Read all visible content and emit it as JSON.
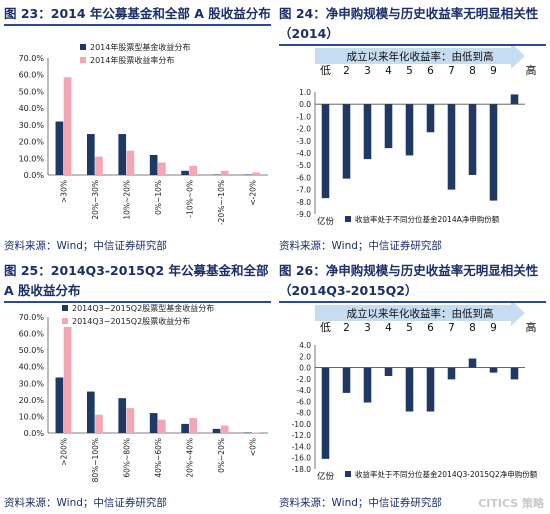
{
  "colors": {
    "navy": "#1f3864",
    "pink": "#f4a6b4",
    "title": "#1b2f6b",
    "arrow": "#5b9bd5"
  },
  "watermark": "CITICS 策略",
  "chart_data": [
    {
      "id": "chart23",
      "type": "bar",
      "title": "图 23：2014 年公募基金和全部 A 股收益分布",
      "source": "资料来源：Wind；中信证券研究部",
      "categories": [
        ">30%",
        "20%~30%",
        "10%~20%",
        "0%~10%",
        "-10%~0%",
        "-20%~-10%",
        "<-20%"
      ],
      "series": [
        {
          "name": "2014年股票型基金收益分布",
          "values": [
            32,
            24.5,
            24.5,
            12,
            2.5,
            0.3,
            0.3
          ]
        },
        {
          "name": "2014年股票收益率分布",
          "values": [
            58.5,
            11,
            14.5,
            7.5,
            5.5,
            2.5,
            1.5
          ]
        }
      ],
      "yticks": [
        "70.0%",
        "60.0%",
        "50.0%",
        "40.0%",
        "30.0%",
        "20.0%",
        "10.0%",
        "0.0%"
      ],
      "ylim": [
        0,
        70
      ]
    },
    {
      "id": "chart24",
      "type": "bar",
      "title": "图 24：净申购规模与历史收益率无明显相关性（2014）",
      "source": "资料来源：Wind；中信证券研究部",
      "arrow_label": "成立以来年化收益率：由低到高",
      "axis_low": "低",
      "axis_high": "高",
      "corner_label": "亿份",
      "categories": [
        "1",
        "2",
        "3",
        "4",
        "5",
        "6",
        "7",
        "8",
        "9",
        "10"
      ],
      "category_labels": [
        "",
        "2",
        "3",
        "4",
        "5",
        "6",
        "7",
        "8",
        "9",
        ""
      ],
      "series": [
        {
          "name": "收益率处于不同分位基金2014A净申购份额",
          "values": [
            -7.7,
            -6.1,
            -4.5,
            -3.6,
            -4.2,
            -2.3,
            -7.0,
            -5.8,
            -7.9,
            0.8
          ]
        }
      ],
      "yticks": [
        "1.0",
        "0.0",
        "-1.0",
        "-2.0",
        "-3.0",
        "-4.0",
        "-5.0",
        "-6.0",
        "-7.0",
        "-8.0",
        "-9.0"
      ],
      "ylim": [
        -9,
        1
      ]
    },
    {
      "id": "chart25",
      "type": "bar",
      "title": "图 25：2014Q3-2015Q2 年公募基金和全部 A 股收益分布",
      "source": "资料来源：Wind；中信证券研究部",
      "categories": [
        ">200%",
        "80%~100%",
        "60%~80%",
        "40%~60%",
        "20%~40%",
        "0%~20%",
        "<0%"
      ],
      "series": [
        {
          "name": "2014Q3~2015Q2股票型基金收益分布",
          "values": [
            33.5,
            25,
            21,
            12,
            5.5,
            2.5,
            0.3
          ]
        },
        {
          "name": "2014Q3~2015Q2股票收益分布",
          "values": [
            64,
            11,
            15,
            8,
            9,
            4.5,
            0.3
          ]
        }
      ],
      "yticks": [
        "70.0%",
        "60.0%",
        "50.0%",
        "40.0%",
        "30.0%",
        "20.0%",
        "10.0%",
        "0.0%"
      ],
      "ylim": [
        0,
        70
      ]
    },
    {
      "id": "chart26",
      "type": "bar",
      "title": "图 26：净申购规模与历史收益率无明显相关性（2014Q3-2015Q2）",
      "source": "资料来源：Wind；中信证券研究部",
      "arrow_label": "成立以来年化收益率：由低到高",
      "axis_low": "低",
      "axis_high": "高",
      "corner_label": "亿份",
      "categories": [
        "1",
        "2",
        "3",
        "4",
        "5",
        "6",
        "7",
        "8",
        "9",
        "10"
      ],
      "category_labels": [
        "",
        "2",
        "3",
        "4",
        "5",
        "6",
        "7",
        "8",
        "9",
        ""
      ],
      "series": [
        {
          "name": "收益率处于不同分位基金2014Q3-2015Q2净申购份额",
          "values": [
            -16.2,
            -4.5,
            -6.2,
            -1.5,
            -7.8,
            -7.8,
            -2.1,
            1.6,
            -0.9,
            -2.1
          ]
        }
      ],
      "yticks": [
        "4.0",
        "2.0",
        "0.0",
        "-2.0",
        "-4.0",
        "-6.0",
        "-8.0",
        "-10.0",
        "-12.0",
        "-14.0",
        "-16.0",
        "-18.0"
      ],
      "ylim": [
        -18,
        4
      ]
    }
  ]
}
